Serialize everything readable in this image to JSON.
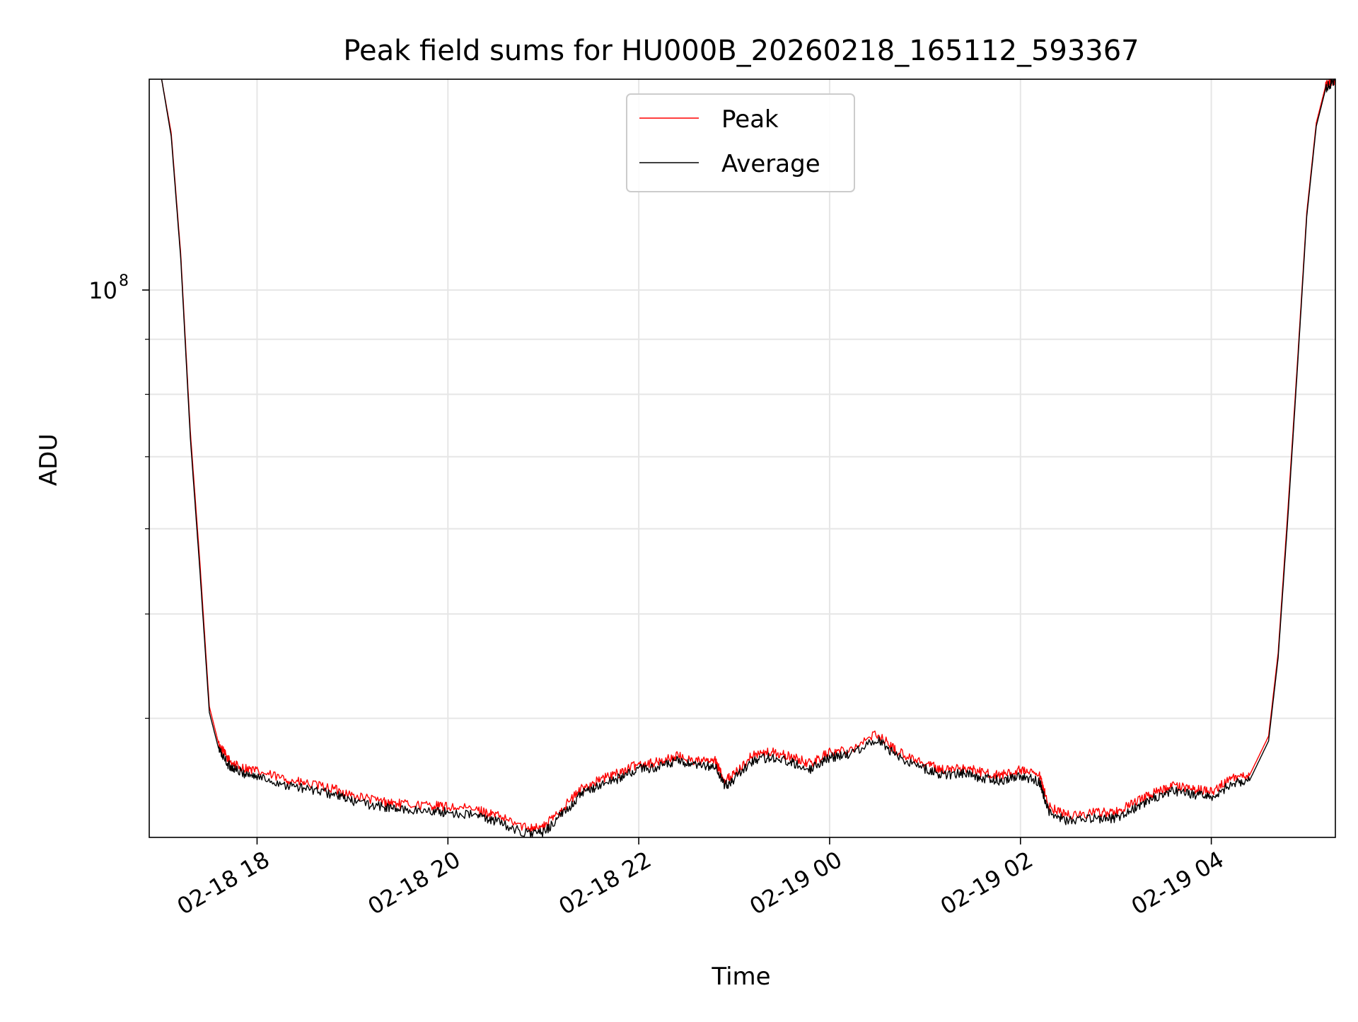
{
  "chart_data": {
    "type": "line",
    "title": "Peak field sums for HU000B_20260218_165112_593367",
    "xlabel": "Time",
    "ylabel": "ADU",
    "yscale": "log",
    "x_unit": "hours since 02-18 00:00",
    "xlim": [
      16.87,
      29.3
    ],
    "ylim": [
      31000000,
      157000000
    ],
    "x_ticks": [
      {
        "value": 18,
        "label": "02-18 18"
      },
      {
        "value": 20,
        "label": "02-18 20"
      },
      {
        "value": 22,
        "label": "02-18 22"
      },
      {
        "value": 24,
        "label": "02-19 00"
      },
      {
        "value": 26,
        "label": "02-19 02"
      },
      {
        "value": 28,
        "label": "02-19 04"
      }
    ],
    "y_ticks": [
      {
        "value": 100000000,
        "base": "10",
        "exp": "8"
      }
    ],
    "grid": true,
    "legend_position": "upper-center",
    "series": [
      {
        "name": "Peak",
        "color": "#ff0000",
        "x": [
          17.0,
          17.1,
          17.2,
          17.3,
          17.4,
          17.5,
          17.6,
          17.7,
          17.8,
          18.0,
          18.3,
          18.5,
          18.8,
          19.0,
          19.3,
          19.5,
          19.8,
          20.0,
          20.3,
          20.5,
          20.8,
          21.0,
          21.2,
          21.4,
          21.6,
          21.8,
          22.0,
          22.2,
          22.4,
          22.6,
          22.8,
          22.9,
          23.0,
          23.2,
          23.4,
          23.6,
          23.8,
          24.0,
          24.2,
          24.5,
          24.7,
          25.0,
          25.2,
          25.4,
          25.6,
          25.8,
          26.0,
          26.2,
          26.3,
          26.5,
          26.8,
          27.0,
          27.2,
          27.4,
          27.6,
          27.8,
          28.0,
          28.2,
          28.4,
          28.6,
          28.7,
          28.8,
          28.9,
          29.0,
          29.1,
          29.2,
          29.3
        ],
        "y": [
          157000000,
          140000000,
          108000000,
          74000000,
          56000000,
          41000000,
          37800000,
          36600000,
          36100000,
          35700000,
          35100000,
          34800000,
          34400000,
          33900000,
          33500000,
          33300000,
          33200000,
          33100000,
          32900000,
          32500000,
          31700000,
          31700000,
          33000000,
          34400000,
          35100000,
          35600000,
          36300000,
          36400000,
          36900000,
          36500000,
          36500000,
          35000000,
          35500000,
          37000000,
          37200000,
          36800000,
          36300000,
          37200000,
          37400000,
          38700000,
          37300000,
          36300000,
          35800000,
          36000000,
          35600000,
          35400000,
          35800000,
          35300000,
          33100000,
          32500000,
          32700000,
          32700000,
          33400000,
          34100000,
          34600000,
          34400000,
          34200000,
          35100000,
          35400000,
          38500000,
          46000000,
          62000000,
          85000000,
          118000000,
          143000000,
          155000000,
          157000000
        ]
      },
      {
        "name": "Average",
        "color": "#000000",
        "x": [
          17.0,
          17.1,
          17.2,
          17.3,
          17.4,
          17.5,
          17.6,
          17.7,
          17.8,
          18.0,
          18.3,
          18.5,
          18.8,
          19.0,
          19.3,
          19.5,
          19.8,
          20.0,
          20.3,
          20.5,
          20.8,
          21.0,
          21.2,
          21.4,
          21.6,
          21.8,
          22.0,
          22.2,
          22.4,
          22.6,
          22.8,
          22.9,
          23.0,
          23.2,
          23.4,
          23.6,
          23.8,
          24.0,
          24.2,
          24.5,
          24.7,
          25.0,
          25.2,
          25.4,
          25.6,
          25.8,
          26.0,
          26.2,
          26.3,
          26.5,
          26.8,
          27.0,
          27.2,
          27.4,
          27.6,
          27.8,
          28.0,
          28.2,
          28.4,
          28.6,
          28.7,
          28.8,
          28.9,
          29.0,
          29.1,
          29.2,
          29.3
        ],
        "y": [
          157000000,
          139000000,
          107000000,
          73000000,
          55000000,
          40500000,
          37400000,
          36200000,
          35700000,
          35300000,
          34700000,
          34400000,
          34000000,
          33500000,
          33100000,
          32900000,
          32800000,
          32700000,
          32500000,
          32100000,
          31300000,
          31300000,
          32600000,
          34000000,
          34700000,
          35200000,
          35900000,
          36000000,
          36500000,
          36100000,
          36100000,
          34600000,
          35100000,
          36600000,
          36800000,
          36400000,
          35900000,
          36800000,
          37000000,
          38300000,
          36900000,
          35900000,
          35400000,
          35600000,
          35200000,
          35000000,
          35400000,
          34900000,
          32700000,
          32100000,
          32300000,
          32300000,
          33000000,
          33700000,
          34200000,
          34000000,
          33800000,
          34700000,
          35000000,
          38100000,
          45500000,
          61000000,
          84000000,
          117000000,
          142000000,
          154000000,
          157000000
        ]
      }
    ]
  }
}
